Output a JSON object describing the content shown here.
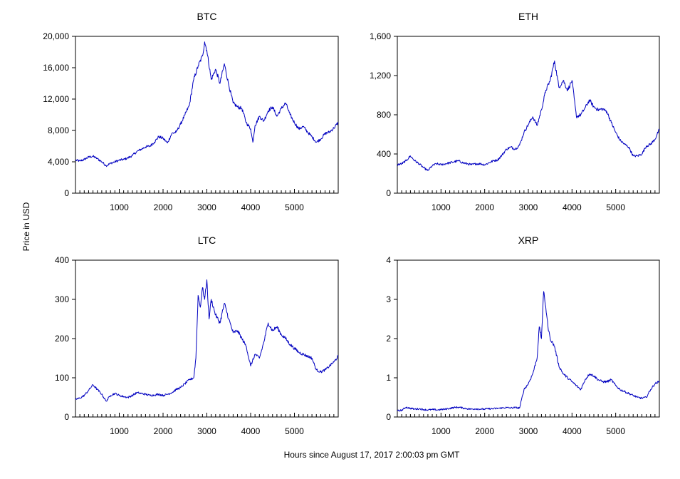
{
  "figure": {
    "ylabel": "Price in USD",
    "xlabel": "Hours since August 17, 2017 2:00:03 pm GMT"
  },
  "chart_data": [
    {
      "type": "line",
      "title": "BTC",
      "xlim": [
        0,
        6000
      ],
      "ylim": [
        0,
        20000
      ],
      "yticks": [
        0,
        4000,
        8000,
        12000,
        16000,
        20000
      ],
      "ytick_labels": [
        "0",
        "4,000",
        "8,000",
        "12,000",
        "16,000",
        "20,000"
      ],
      "xticks": [
        1000,
        2000,
        3000,
        4000,
        5000
      ],
      "xtick_labels": [
        "1000",
        "2000",
        "3000",
        "4000",
        "5000"
      ],
      "grid": false,
      "series_color": "#0000c0",
      "x": [
        0,
        100,
        200,
        300,
        400,
        500,
        600,
        700,
        800,
        900,
        1000,
        1100,
        1200,
        1300,
        1400,
        1500,
        1600,
        1700,
        1800,
        1900,
        2000,
        2100,
        2200,
        2300,
        2400,
        2500,
        2600,
        2700,
        2800,
        2900,
        2950,
        3000,
        3100,
        3200,
        3300,
        3400,
        3500,
        3600,
        3700,
        3800,
        3900,
        4000,
        4050,
        4100,
        4200,
        4300,
        4400,
        4500,
        4600,
        4700,
        4800,
        4900,
        5000,
        5100,
        5200,
        5300,
        5400,
        5500,
        5600,
        5700,
        5800,
        5900,
        6000
      ],
      "values": [
        4200,
        4100,
        4300,
        4600,
        4700,
        4400,
        4000,
        3500,
        3800,
        4000,
        4200,
        4300,
        4500,
        4800,
        5300,
        5600,
        5900,
        6000,
        6500,
        7200,
        7000,
        6400,
        7600,
        7800,
        8800,
        10000,
        11200,
        14500,
        16200,
        17500,
        19300,
        18200,
        14500,
        15800,
        14000,
        16500,
        13800,
        11500,
        11000,
        10800,
        9000,
        8200,
        6500,
        8600,
        9800,
        9200,
        10500,
        11000,
        9800,
        10800,
        11500,
        10000,
        9000,
        8200,
        8500,
        7800,
        7200,
        6500,
        6900,
        7600,
        7800,
        8300,
        9000
      ]
    },
    {
      "type": "line",
      "title": "ETH",
      "xlim": [
        0,
        6000
      ],
      "ylim": [
        0,
        1600
      ],
      "yticks": [
        0,
        400,
        800,
        1200,
        1600
      ],
      "ytick_labels": [
        "0",
        "400",
        "800",
        "1,200",
        "1,600"
      ],
      "xticks": [
        1000,
        2000,
        3000,
        4000,
        5000
      ],
      "xtick_labels": [
        "1000",
        "2000",
        "3000",
        "4000",
        "5000"
      ],
      "grid": false,
      "series_color": "#0000c0",
      "x": [
        0,
        100,
        200,
        300,
        400,
        500,
        600,
        700,
        800,
        900,
        1000,
        1100,
        1200,
        1300,
        1400,
        1500,
        1600,
        1700,
        1800,
        1900,
        2000,
        2100,
        2200,
        2300,
        2400,
        2500,
        2600,
        2700,
        2800,
        2900,
        3000,
        3100,
        3200,
        3300,
        3400,
        3500,
        3600,
        3700,
        3800,
        3900,
        4000,
        4100,
        4200,
        4300,
        4400,
        4500,
        4600,
        4700,
        4800,
        4900,
        5000,
        5100,
        5200,
        5300,
        5400,
        5500,
        5600,
        5700,
        5800,
        5900,
        6000
      ],
      "values": [
        290,
        300,
        330,
        380,
        330,
        300,
        260,
        230,
        280,
        300,
        290,
        300,
        310,
        320,
        330,
        310,
        300,
        290,
        300,
        300,
        290,
        310,
        330,
        340,
        390,
        450,
        470,
        450,
        490,
        620,
        700,
        780,
        690,
        850,
        1050,
        1150,
        1350,
        1080,
        1150,
        1050,
        1150,
        780,
        800,
        870,
        950,
        880,
        850,
        860,
        830,
        720,
        620,
        540,
        500,
        470,
        380,
        380,
        400,
        480,
        500,
        550,
        650
      ]
    },
    {
      "type": "line",
      "title": "LTC",
      "xlim": [
        0,
        6000
      ],
      "ylim": [
        0,
        400
      ],
      "yticks": [
        0,
        100,
        200,
        300,
        400
      ],
      "ytick_labels": [
        "0",
        "100",
        "200",
        "300",
        "400"
      ],
      "xticks": [
        1000,
        2000,
        3000,
        4000,
        5000
      ],
      "xtick_labels": [
        "1000",
        "2000",
        "3000",
        "4000",
        "5000"
      ],
      "grid": false,
      "series_color": "#0000c0",
      "x": [
        0,
        100,
        200,
        300,
        400,
        500,
        600,
        700,
        800,
        900,
        1000,
        1100,
        1200,
        1300,
        1400,
        1500,
        1600,
        1700,
        1800,
        1900,
        2000,
        2100,
        2200,
        2300,
        2400,
        2500,
        2600,
        2700,
        2750,
        2800,
        2850,
        2900,
        2950,
        3000,
        3050,
        3100,
        3200,
        3300,
        3400,
        3500,
        3600,
        3700,
        3800,
        3900,
        4000,
        4100,
        4200,
        4300,
        4400,
        4500,
        4600,
        4700,
        4800,
        4900,
        5000,
        5100,
        5200,
        5300,
        5400,
        5500,
        5600,
        5700,
        5800,
        5900,
        6000
      ],
      "values": [
        45,
        48,
        55,
        68,
        82,
        70,
        58,
        40,
        55,
        60,
        55,
        52,
        50,
        55,
        62,
        60,
        58,
        55,
        56,
        58,
        55,
        58,
        62,
        70,
        75,
        85,
        95,
        100,
        150,
        310,
        280,
        330,
        300,
        350,
        250,
        300,
        260,
        240,
        290,
        250,
        215,
        220,
        200,
        180,
        130,
        160,
        150,
        190,
        240,
        220,
        230,
        210,
        200,
        185,
        175,
        165,
        160,
        155,
        150,
        120,
        115,
        120,
        130,
        140,
        155
      ]
    },
    {
      "type": "line",
      "title": "XRP",
      "xlim": [
        0,
        6000
      ],
      "ylim": [
        0,
        4
      ],
      "yticks": [
        0,
        1,
        2,
        3,
        4
      ],
      "ytick_labels": [
        "0",
        "1",
        "2",
        "3",
        "4"
      ],
      "xticks": [
        1000,
        2000,
        3000,
        4000,
        5000
      ],
      "xtick_labels": [
        "1000",
        "2000",
        "3000",
        "4000",
        "5000"
      ],
      "grid": false,
      "series_color": "#0000c0",
      "x": [
        0,
        100,
        200,
        300,
        400,
        500,
        600,
        700,
        800,
        900,
        1000,
        1100,
        1200,
        1300,
        1400,
        1500,
        1600,
        1700,
        1800,
        1900,
        2000,
        2100,
        2200,
        2300,
        2400,
        2500,
        2600,
        2700,
        2800,
        2900,
        3000,
        3100,
        3200,
        3250,
        3300,
        3350,
        3400,
        3450,
        3500,
        3600,
        3700,
        3800,
        3900,
        4000,
        4100,
        4200,
        4300,
        4400,
        4500,
        4600,
        4700,
        4800,
        4900,
        5000,
        5100,
        5200,
        5300,
        5400,
        5500,
        5600,
        5700,
        5800,
        5900,
        6000
      ],
      "values": [
        0.16,
        0.17,
        0.25,
        0.22,
        0.2,
        0.21,
        0.19,
        0.18,
        0.19,
        0.18,
        0.19,
        0.2,
        0.22,
        0.24,
        0.25,
        0.23,
        0.21,
        0.2,
        0.21,
        0.2,
        0.2,
        0.21,
        0.21,
        0.22,
        0.23,
        0.24,
        0.23,
        0.24,
        0.23,
        0.7,
        0.85,
        1.1,
        1.5,
        2.3,
        2.0,
        3.2,
        2.8,
        2.3,
        2.0,
        1.8,
        1.3,
        1.1,
        1.0,
        0.9,
        0.8,
        0.7,
        0.95,
        1.1,
        1.05,
        0.95,
        0.9,
        0.9,
        0.95,
        0.8,
        0.7,
        0.65,
        0.6,
        0.55,
        0.5,
        0.48,
        0.5,
        0.7,
        0.85,
        0.9
      ]
    }
  ]
}
